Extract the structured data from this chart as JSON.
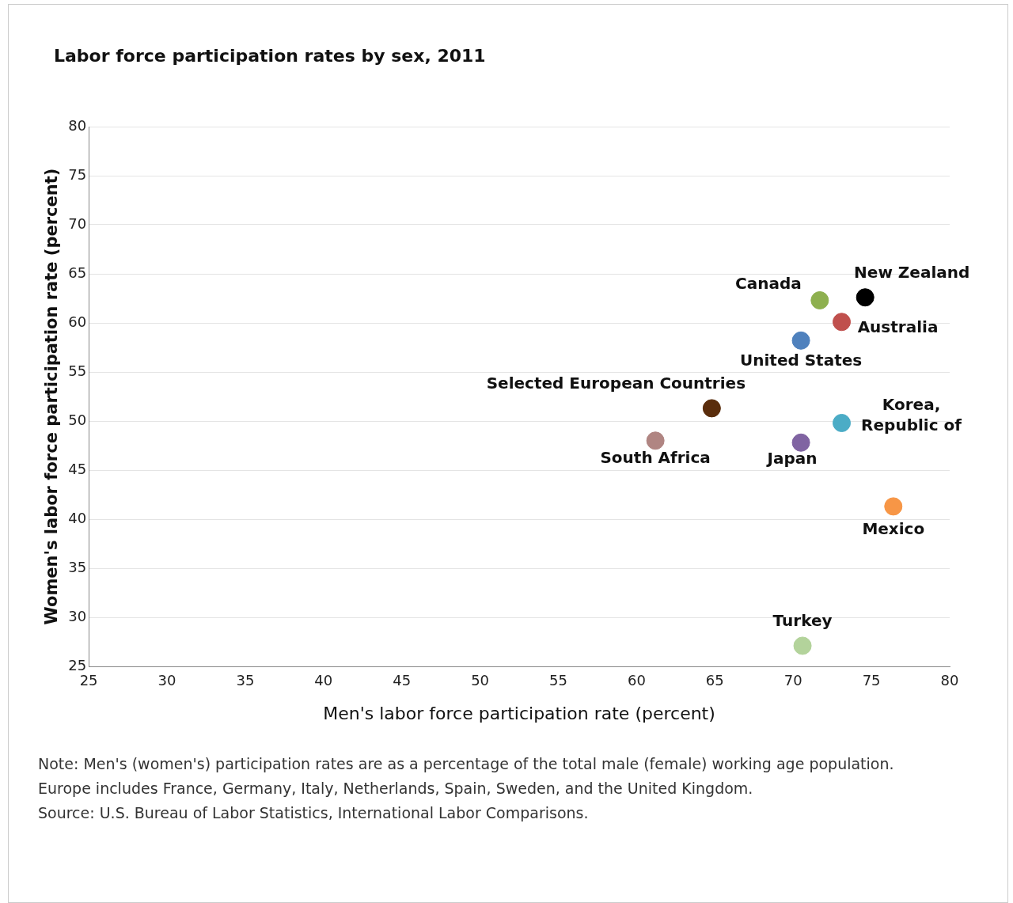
{
  "chart_data": {
    "type": "scatter",
    "title": "Labor force participation rates by sex, 2011",
    "xlabel": "Men's labor force participation rate (percent)",
    "ylabel": "Women's labor force participation rate (percent)",
    "xlim": [
      25,
      80
    ],
    "xticks": [
      25,
      30,
      35,
      40,
      45,
      50,
      55,
      60,
      65,
      70,
      75,
      80
    ],
    "ylim": [
      25,
      80
    ],
    "yticks": [
      25,
      30,
      35,
      40,
      45,
      50,
      55,
      60,
      65,
      70,
      75,
      80
    ],
    "grid": "y",
    "legend": false,
    "marker": "circle",
    "series": [
      {
        "name": "New Zealand",
        "color": "#000000",
        "x": [
          74.6
        ],
        "values": [
          62.6
        ]
      },
      {
        "name": "Canada",
        "color": "#8eb04f",
        "x": [
          71.7
        ],
        "values": [
          62.3
        ]
      },
      {
        "name": "Australia",
        "color": "#c0504d",
        "x": [
          73.1
        ],
        "values": [
          60.1
        ]
      },
      {
        "name": "United States",
        "color": "#4f81bd",
        "x": [
          70.5
        ],
        "values": [
          58.2
        ]
      },
      {
        "name": "Selected European Countries",
        "color": "#5a2d0c",
        "x": [
          64.8
        ],
        "values": [
          51.3
        ]
      },
      {
        "name": "Korea, Republic of",
        "color": "#4bacc6",
        "x": [
          73.1
        ],
        "values": [
          49.8
        ]
      },
      {
        "name": "South Africa",
        "color": "#b08582",
        "x": [
          61.2
        ],
        "values": [
          48.0
        ]
      },
      {
        "name": "Japan",
        "color": "#8064a2",
        "x": [
          70.5
        ],
        "values": [
          47.8
        ]
      },
      {
        "name": "Mexico",
        "color": "#f79646",
        "x": [
          76.4
        ],
        "values": [
          41.3
        ]
      },
      {
        "name": "Turkey",
        "color": "#b3d39b",
        "x": [
          70.6
        ],
        "values": [
          27.1
        ]
      }
    ],
    "annotations": [
      "Note: Men's (women's) participation rates are as a percentage of the total male (female) working age population. Europe includes France, Germany, Italy, Netherlands, Spain, Sweden, and the United Kingdom.",
      "Source: U.S. Bureau of Labor Statistics, International Labor Comparisons."
    ]
  }
}
